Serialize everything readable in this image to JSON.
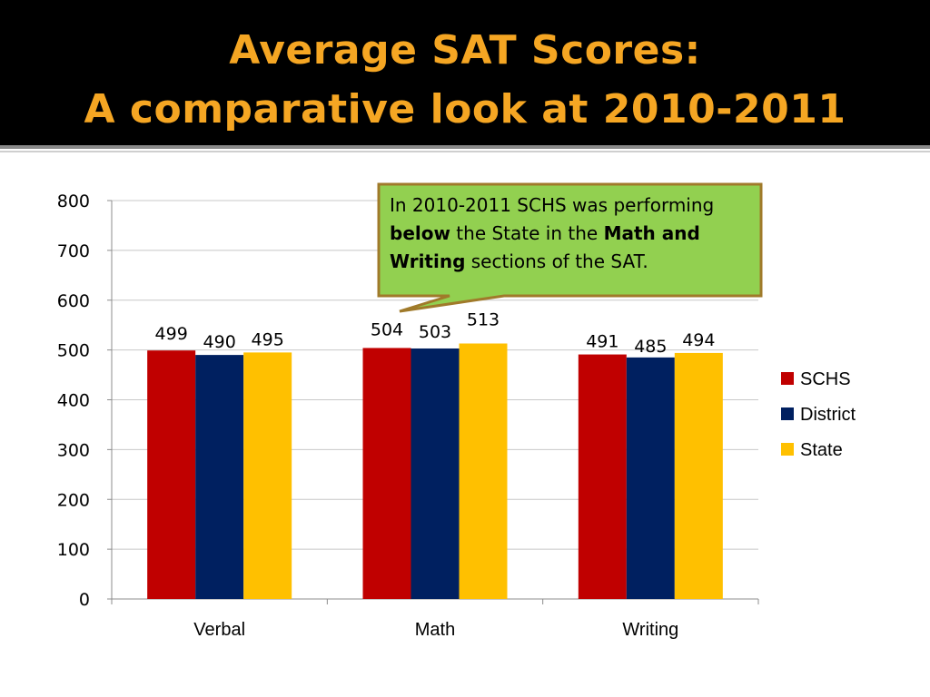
{
  "slide": {
    "title_line1": "Average SAT Scores:",
    "title_line2": "A comparative look at 2010-2011"
  },
  "callout": {
    "part1": "In 2010-2011 SCHS was performing ",
    "part2_bold": "below",
    "part3": " the State in the ",
    "part4_bold": "Math and Writing",
    "part5": " sections of the SAT."
  },
  "colors": {
    "title": "#f5a623",
    "callout_fill": "#92d050",
    "callout_border": "#a07a2a"
  },
  "chart_data": {
    "type": "bar",
    "categories": [
      "Verbal",
      "Math",
      "Writing"
    ],
    "series": [
      {
        "name": "SCHS",
        "values": [
          499,
          504,
          491
        ],
        "color": "#c00000"
      },
      {
        "name": "District",
        "values": [
          490,
          503,
          485
        ],
        "color": "#002060"
      },
      {
        "name": "State",
        "values": [
          495,
          513,
          494
        ],
        "color": "#ffc000"
      }
    ],
    "ylim": [
      0,
      800
    ],
    "yticks": [
      0,
      100,
      200,
      300,
      400,
      500,
      600,
      700,
      800
    ],
    "grid": true,
    "legend": "right",
    "data_labels": true
  }
}
